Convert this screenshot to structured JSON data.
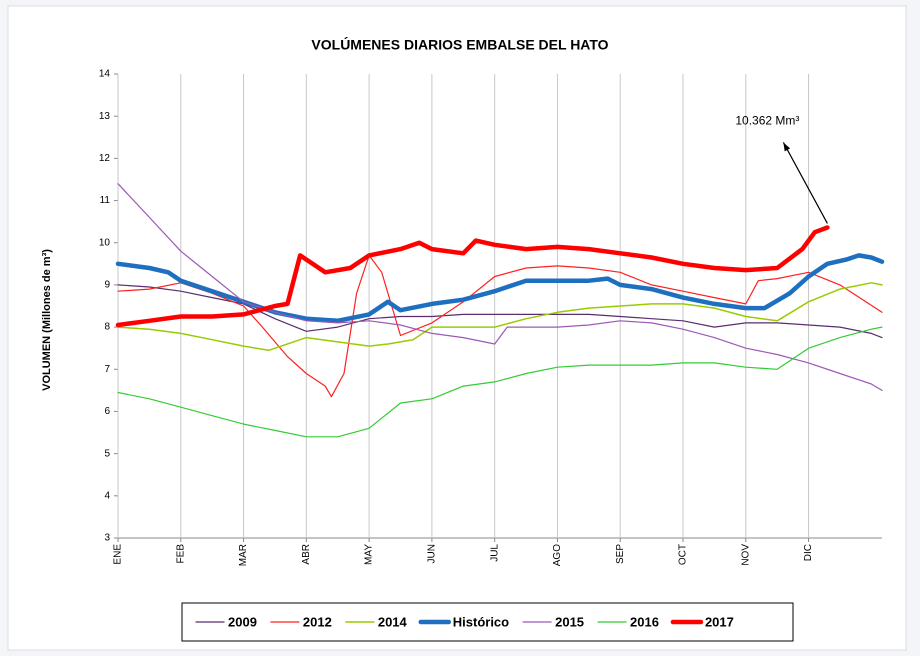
{
  "chart_data": {
    "type": "line",
    "title": "VOLÚMENES DIARIOS EMBALSE DEL HATO",
    "y_label": "VOLUMEN (Millones de m³)",
    "annotation": {
      "text": "10.362 Mm³",
      "x": 11.3,
      "y": 10.362
    },
    "xlim": [
      0,
      12.17
    ],
    "xticks": [
      {
        "value": 0,
        "label": "ENE"
      },
      {
        "value": 1,
        "label": "FEB"
      },
      {
        "value": 2,
        "label": "MAR"
      },
      {
        "value": 3,
        "label": "ABR"
      },
      {
        "value": 4,
        "label": "MAY"
      },
      {
        "value": 5,
        "label": "JUN"
      },
      {
        "value": 6,
        "label": "JUL"
      },
      {
        "value": 7,
        "label": "AGO"
      },
      {
        "value": 8,
        "label": "SEP"
      },
      {
        "value": 9,
        "label": "OCT"
      },
      {
        "value": 10,
        "label": "NOV"
      },
      {
        "value": 11,
        "label": "DIC"
      }
    ],
    "ylim": [
      3,
      14
    ],
    "yticks": [
      3,
      4,
      5,
      6,
      7,
      8,
      9,
      10,
      11,
      12,
      13,
      14
    ],
    "grid": "x",
    "series": [
      {
        "name": "2009",
        "color": "#5b2c6f",
        "linewidth": 1.2,
        "x": [
          0,
          0.5,
          1,
          1.5,
          2,
          2.5,
          3,
          3.5,
          4,
          4.5,
          5,
          5.5,
          6,
          6.5,
          7,
          7.5,
          8,
          8.5,
          9,
          9.5,
          10,
          10.5,
          11,
          11.5,
          12,
          12.17
        ],
        "values": [
          9.0,
          8.95,
          8.85,
          8.7,
          8.55,
          8.2,
          7.9,
          8.0,
          8.2,
          8.25,
          8.25,
          8.3,
          8.3,
          8.3,
          8.3,
          8.3,
          8.25,
          8.2,
          8.15,
          8.0,
          8.1,
          8.1,
          8.05,
          8.0,
          7.85,
          7.75
        ]
      },
      {
        "name": "2012",
        "color": "#ff2020",
        "linewidth": 1.2,
        "x": [
          0,
          0.5,
          1,
          1.5,
          2,
          2.3,
          2.7,
          3,
          3.3,
          3.4,
          3.6,
          3.8,
          4,
          4.2,
          4.5,
          5,
          5.5,
          6,
          6.5,
          7,
          7.5,
          8,
          8.5,
          9,
          9.5,
          10,
          10.2,
          10.5,
          11,
          11.5,
          12.17
        ],
        "values": [
          8.85,
          8.9,
          9.05,
          8.8,
          8.5,
          8.0,
          7.3,
          6.9,
          6.6,
          6.35,
          6.9,
          8.8,
          9.7,
          9.3,
          7.8,
          8.1,
          8.6,
          9.2,
          9.4,
          9.45,
          9.4,
          9.3,
          9.0,
          8.85,
          8.7,
          8.55,
          9.1,
          9.15,
          9.3,
          9.0,
          8.35
        ]
      },
      {
        "name": "2014",
        "color": "#99cc00",
        "linewidth": 1.5,
        "x": [
          0,
          0.5,
          1,
          1.5,
          2,
          2.4,
          3,
          3.5,
          4,
          4.3,
          4.7,
          5,
          5.5,
          6,
          6.5,
          7,
          7.5,
          8,
          8.5,
          9,
          9.5,
          10,
          10.5,
          11,
          11.5,
          12,
          12.17
        ],
        "values": [
          8.0,
          7.95,
          7.85,
          7.7,
          7.55,
          7.45,
          7.75,
          7.65,
          7.55,
          7.6,
          7.7,
          8.0,
          8.0,
          8.0,
          8.2,
          8.35,
          8.45,
          8.5,
          8.55,
          8.55,
          8.45,
          8.25,
          8.15,
          8.6,
          8.9,
          9.05,
          9.0
        ]
      },
      {
        "name": "Histórico",
        "color": "#1f6fc0",
        "linewidth": 4.5,
        "x": [
          0,
          0.5,
          0.8,
          1,
          1.5,
          2,
          2.5,
          3,
          3.5,
          4,
          4.3,
          4.5,
          5,
          5.5,
          6,
          6.5,
          7,
          7.5,
          7.8,
          8,
          8.5,
          9,
          9.5,
          10,
          10.3,
          10.7,
          11,
          11.3,
          11.6,
          11.8,
          12,
          12.17
        ],
        "values": [
          9.5,
          9.4,
          9.3,
          9.1,
          8.85,
          8.6,
          8.35,
          8.2,
          8.15,
          8.3,
          8.6,
          8.4,
          8.55,
          8.65,
          8.85,
          9.1,
          9.1,
          9.1,
          9.15,
          9.0,
          8.9,
          8.7,
          8.55,
          8.45,
          8.45,
          8.8,
          9.2,
          9.5,
          9.6,
          9.7,
          9.65,
          9.55
        ]
      },
      {
        "name": "2015",
        "color": "#9b59b6",
        "linewidth": 1.2,
        "x": [
          0,
          0.5,
          1,
          1.5,
          2,
          2.5,
          3,
          3.5,
          4,
          4.5,
          5,
          5.5,
          6,
          6.2,
          7,
          7.5,
          8,
          8.5,
          9,
          9.5,
          10,
          10.5,
          11,
          11.5,
          12,
          12.17
        ],
        "values": [
          11.4,
          10.6,
          9.8,
          9.2,
          8.6,
          8.35,
          8.15,
          8.1,
          8.15,
          8.05,
          7.85,
          7.75,
          7.6,
          8.0,
          8.0,
          8.05,
          8.15,
          8.1,
          7.95,
          7.75,
          7.5,
          7.35,
          7.15,
          6.9,
          6.65,
          6.5
        ]
      },
      {
        "name": "2016",
        "color": "#33cc33",
        "linewidth": 1.2,
        "x": [
          0,
          0.5,
          1,
          1.5,
          2,
          2.5,
          3,
          3.5,
          4,
          4.5,
          5,
          5.5,
          6,
          6.5,
          7,
          7.5,
          8,
          8.5,
          9,
          9.5,
          10,
          10.5,
          11,
          11.5,
          12,
          12.17
        ],
        "values": [
          6.45,
          6.3,
          6.1,
          5.9,
          5.7,
          5.55,
          5.4,
          5.4,
          5.6,
          6.2,
          6.3,
          6.6,
          6.7,
          6.9,
          7.05,
          7.1,
          7.1,
          7.1,
          7.15,
          7.15,
          7.05,
          7.0,
          7.5,
          7.75,
          7.95,
          8.0
        ]
      },
      {
        "name": "2017",
        "color": "#ff0000",
        "linewidth": 4.5,
        "x": [
          0,
          0.5,
          1,
          1.5,
          2,
          2.5,
          2.7,
          2.9,
          3.1,
          3.3,
          3.7,
          4,
          4.5,
          4.8,
          5,
          5.5,
          5.7,
          6,
          6.5,
          7,
          7.5,
          8,
          8.5,
          9,
          9.5,
          10,
          10.5,
          10.9,
          11.1,
          11.3
        ],
        "values": [
          8.05,
          8.15,
          8.25,
          8.25,
          8.3,
          8.5,
          8.55,
          9.7,
          9.5,
          9.3,
          9.4,
          9.7,
          9.85,
          10.0,
          9.85,
          9.75,
          10.05,
          9.95,
          9.85,
          9.9,
          9.85,
          9.75,
          9.65,
          9.5,
          9.4,
          9.35,
          9.4,
          9.85,
          10.25,
          10.362
        ]
      }
    ]
  }
}
